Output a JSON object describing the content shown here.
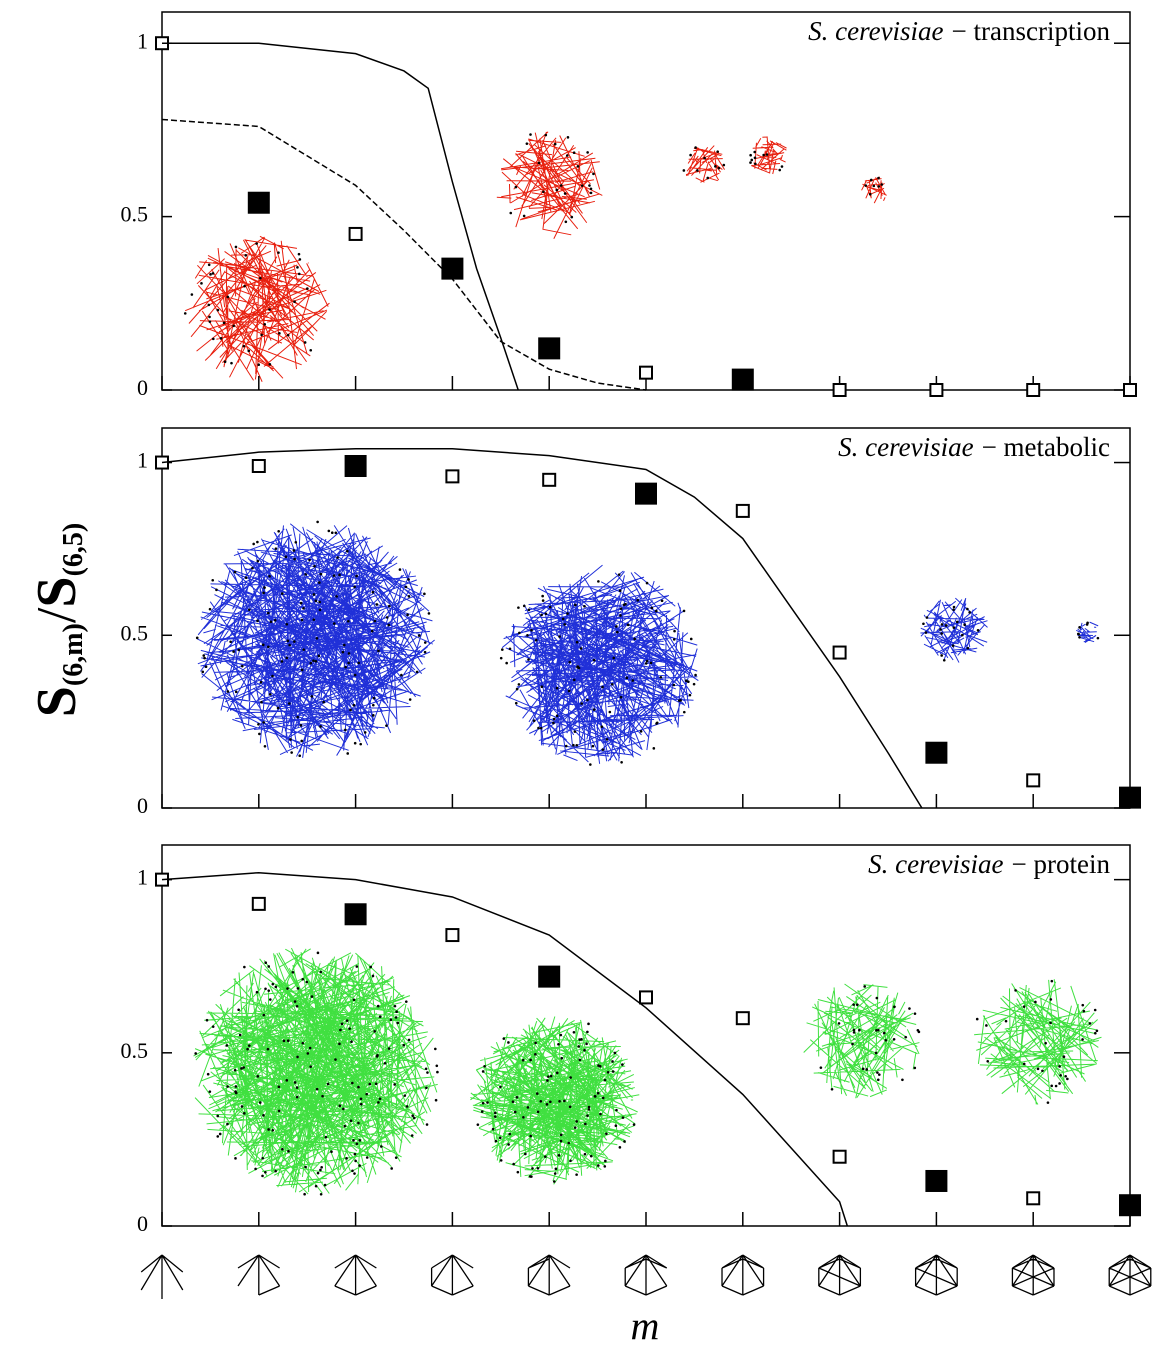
{
  "y_label_parts": [
    "S",
    "(6,m)",
    "/",
    "S",
    "(6,5)"
  ],
  "x_label": "m",
  "chart_data": [
    {
      "type": "scatter",
      "title_species": "S. cerevisiae",
      "title": "− transcription",
      "xlim": [
        0,
        10
      ],
      "xticks": [
        0,
        1,
        2,
        3,
        4,
        5,
        6,
        7,
        8,
        9,
        10
      ],
      "ylim": [
        0,
        1.09
      ],
      "yticks": [
        0,
        0.5,
        1
      ],
      "series": [
        {
          "style": "open-square",
          "color": "#000000",
          "x": [
            0,
            2,
            5,
            7,
            8,
            9,
            10
          ],
          "values": [
            1,
            0.45,
            0.05,
            0,
            0,
            0,
            0
          ]
        },
        {
          "style": "filled-square",
          "color": "#000000",
          "x": [
            1,
            3,
            4,
            6
          ],
          "values": [
            0.54,
            0.35,
            0.12,
            0.03
          ]
        },
        {
          "style": "solid-line",
          "color": "#000000",
          "x": [
            0,
            1,
            2,
            2.5,
            2.75,
            3,
            3.25,
            3.5,
            3.68
          ],
          "values": [
            1,
            1,
            0.97,
            0.92,
            0.87,
            0.6,
            0.35,
            0.15,
            0
          ]
        },
        {
          "style": "dashed-line",
          "color": "#000000",
          "x": [
            0,
            1,
            2,
            2.5,
            3,
            3.5,
            4,
            4.5,
            5
          ],
          "values": [
            0.78,
            0.76,
            0.59,
            0.46,
            0.32,
            0.14,
            0.06,
            0.02,
            0
          ]
        }
      ]
    },
    {
      "type": "scatter",
      "title_species": "S. cerevisiae",
      "title": "− metabolic",
      "xlim": [
        0,
        10
      ],
      "xticks": [
        0,
        1,
        2,
        3,
        4,
        5,
        6,
        7,
        8,
        9,
        10
      ],
      "ylim": [
        0,
        1.1
      ],
      "yticks": [
        0,
        0.5,
        1
      ],
      "series": [
        {
          "style": "open-square",
          "color": "#000000",
          "x": [
            0,
            1,
            3,
            4,
            6,
            7,
            9
          ],
          "values": [
            1,
            0.99,
            0.96,
            0.95,
            0.86,
            0.45,
            0.08
          ]
        },
        {
          "style": "filled-square",
          "color": "#000000",
          "x": [
            2,
            5,
            8,
            10
          ],
          "values": [
            0.99,
            0.91,
            0.16,
            0.03
          ]
        },
        {
          "style": "solid-line",
          "color": "#000000",
          "x": [
            0,
            1,
            2,
            3,
            4,
            5,
            5.5,
            6,
            6.5,
            7,
            7.5,
            7.85
          ],
          "values": [
            1,
            1.03,
            1.04,
            1.04,
            1.02,
            0.98,
            0.9,
            0.78,
            0.58,
            0.38,
            0.16,
            0
          ]
        }
      ]
    },
    {
      "type": "scatter",
      "title_species": "S. cerevisiae",
      "title": "− protein",
      "xlim": [
        0,
        10
      ],
      "xticks": [
        0,
        1,
        2,
        3,
        4,
        5,
        6,
        7,
        8,
        9,
        10
      ],
      "ylim": [
        0,
        1.1
      ],
      "yticks": [
        0,
        0.5,
        1
      ],
      "series": [
        {
          "style": "open-square",
          "color": "#000000",
          "x": [
            0,
            1,
            3,
            5,
            6,
            7,
            9
          ],
          "values": [
            1,
            0.93,
            0.84,
            0.66,
            0.6,
            0.2,
            0.08
          ]
        },
        {
          "style": "filled-square",
          "color": "#000000",
          "x": [
            2,
            4,
            8,
            10
          ],
          "values": [
            0.9,
            0.72,
            0.13,
            0.06
          ]
        },
        {
          "style": "solid-line",
          "color": "#000000",
          "x": [
            0,
            1,
            2,
            3,
            4,
            5,
            6,
            7,
            7.08
          ],
          "values": [
            1,
            1.02,
            1.0,
            0.95,
            0.84,
            0.63,
            0.38,
            0.07,
            0
          ]
        }
      ]
    }
  ]
}
